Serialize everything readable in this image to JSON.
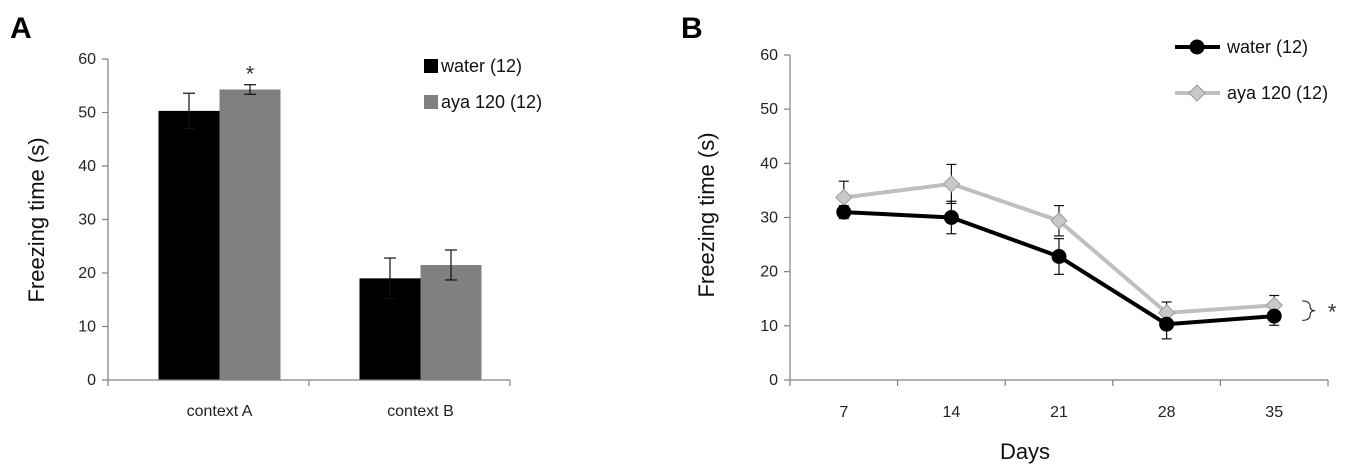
{
  "chart_data": [
    {
      "panel": "A",
      "type": "bar",
      "categories": [
        "context A",
        "context B"
      ],
      "series": [
        {
          "name": "water (12)",
          "values": [
            50.3,
            19.0
          ],
          "errors": [
            3.3,
            3.8
          ],
          "color": "#000000"
        },
        {
          "name": "aya 120 (12)",
          "values": [
            54.3,
            21.5
          ],
          "errors": [
            0.9,
            2.8
          ],
          "color": "#808080"
        }
      ],
      "ylabel": "Freezing time (s)",
      "ylim": [
        0,
        60
      ],
      "yticks": [
        0,
        10,
        20,
        30,
        40,
        50,
        60
      ],
      "legend": "top-right",
      "annotations": [
        {
          "text": "*",
          "category": "context A",
          "series": "aya 120 (12)"
        }
      ]
    },
    {
      "panel": "B",
      "type": "line",
      "x": [
        7,
        14,
        21,
        28,
        35
      ],
      "series": [
        {
          "name": "water (12)",
          "values": [
            31.0,
            30.0,
            22.8,
            10.3,
            11.8
          ],
          "errors": [
            1.2,
            3.0,
            3.3,
            2.7,
            1.7
          ],
          "color": "#000000",
          "marker": "circle"
        },
        {
          "name": "aya 120 (12)",
          "values": [
            33.7,
            36.2,
            29.4,
            12.4,
            13.8
          ],
          "errors": [
            3.0,
            3.6,
            2.8,
            2.0,
            1.8
          ],
          "color": "#bfbfbf",
          "marker": "diamond"
        }
      ],
      "xlabel": "Days",
      "ylabel": "Freezing time (s)",
      "ylim": [
        0,
        60
      ],
      "yticks": [
        0,
        10,
        20,
        30,
        40,
        50,
        60
      ],
      "legend": "top-right",
      "annotations": [
        {
          "text": "*",
          "x": 35
        }
      ]
    }
  ]
}
